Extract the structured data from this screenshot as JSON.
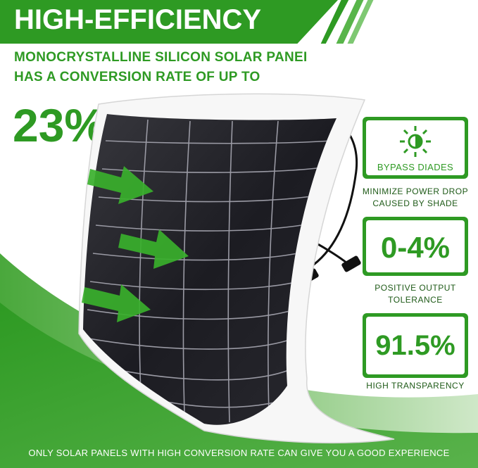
{
  "banner": {
    "title": "HIGH-EFFICIENCY"
  },
  "headline": {
    "line1": "MONOCRYSTALLINE SILICON SOLAR PANEI",
    "line2": "HAS A CONVERSION RATE OF UP TO",
    "rate": "23%"
  },
  "features": [
    {
      "value": "",
      "label": "BYPASS DIADES",
      "caption": "MINIMIZE POWER DROP CAUSED BY SHADE",
      "icon": "sun-shade-icon"
    },
    {
      "value": "0-4%",
      "label": "",
      "caption": "POSITIVE OUTPUT TOLERANCE",
      "icon": ""
    },
    {
      "value": "91.5%",
      "label": "",
      "caption": "HIGH TRANSPARENCY",
      "icon": ""
    }
  ],
  "footer": "ONLY SOLAR PANELS WITH HIGH CONVERSION RATE CAN GIVE YOU A GOOD EXPERIENCE",
  "colors": {
    "brand_green": "#2e9a23",
    "light_green": "#7ec872",
    "dark_text": "#1e5a17"
  }
}
